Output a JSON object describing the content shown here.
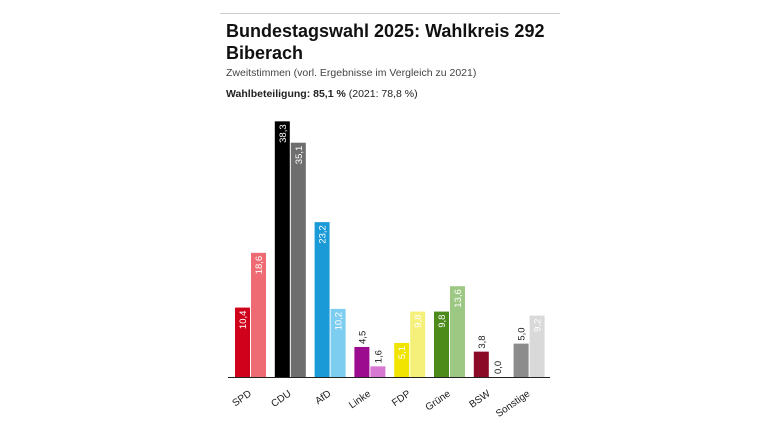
{
  "title": "Bundestagswahl 2025: Wahlkreis 292 Biberach",
  "subtitle": "Zweitstimmen (vorl. Ergebnisse im Vergleich zu 2021)",
  "turnout": {
    "label": "Wahlbeteiligung:",
    "value": "85,1 %",
    "previous": "(2021: 78,8 %)"
  },
  "chart_data": {
    "type": "bar",
    "title": "Bundestagswahl 2025: Wahlkreis 292 Biberach",
    "subtitle": "Zweitstimmen (vorl. Ergebnisse im Vergleich zu 2021)",
    "xlabel": "",
    "ylabel": "",
    "ylim": [
      0,
      40
    ],
    "grid": false,
    "legend": "none",
    "categories": [
      "SPD",
      "CDU",
      "AfD",
      "Linke",
      "FDP",
      "Grüne",
      "BSW",
      "Sonstige"
    ],
    "series": [
      {
        "values": [
          10.4,
          38.3,
          23.2,
          4.5,
          5.1,
          9.8,
          3.8,
          5.0
        ],
        "labels": [
          "10,4",
          "38,3",
          "23,2",
          "4,5",
          "5,1",
          "9,8",
          "3,8",
          "5,0"
        ],
        "colors": [
          "#d0021b",
          "#000000",
          "#1a9ad6",
          "#9b0c8f",
          "#f1e400",
          "#4c8a1a",
          "#8b0a26",
          "#8c8c8c"
        ]
      },
      {
        "values": [
          18.6,
          35.1,
          10.2,
          1.6,
          9.8,
          13.6,
          0.0,
          9.2
        ],
        "labels": [
          "18,6",
          "35,1",
          "10,2",
          "1,6",
          "9,8",
          "13,6",
          "0,0",
          "9,2"
        ],
        "colors": [
          "#ee6b73",
          "#6e6e6e",
          "#7ccdf0",
          "#d778d3",
          "#f5f07a",
          "#9cc884",
          "#c98a97",
          "#d9d9d9"
        ]
      }
    ]
  }
}
